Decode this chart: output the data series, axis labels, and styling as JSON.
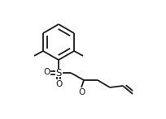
{
  "bg_color": "#ffffff",
  "line_color": "#1a1a1a",
  "line_width": 1.3,
  "figsize": [
    2.04,
    1.47
  ],
  "dpi": 100,
  "xlim": [
    0,
    204
  ],
  "ylim": [
    0,
    147
  ]
}
